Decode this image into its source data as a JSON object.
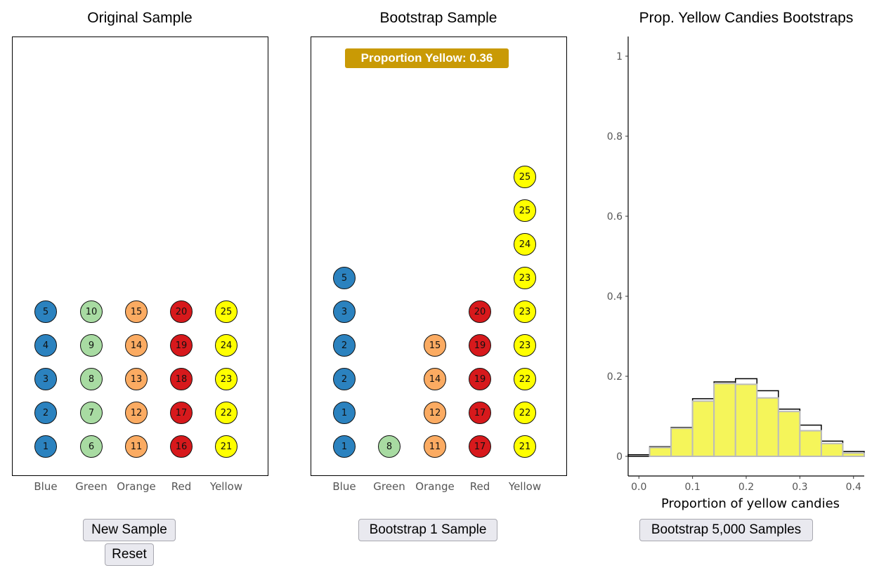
{
  "panels": {
    "original": {
      "title": "Original Sample",
      "categories": [
        "Blue",
        "Green",
        "Orange",
        "Red",
        "Yellow"
      ],
      "columns": [
        {
          "color": "#2b82bf",
          "ids": [
            "1",
            "2",
            "3",
            "4",
            "5"
          ]
        },
        {
          "color": "#a8dba2",
          "ids": [
            "6",
            "7",
            "8",
            "9",
            "10"
          ]
        },
        {
          "color": "#fbab62",
          "ids": [
            "11",
            "12",
            "13",
            "14",
            "15"
          ]
        },
        {
          "color": "#d7191c",
          "ids": [
            "16",
            "17",
            "18",
            "19",
            "20"
          ]
        },
        {
          "color": "#ffff00",
          "ids": [
            "21",
            "22",
            "23",
            "24",
            "25"
          ]
        }
      ]
    },
    "bootstrap": {
      "title": "Bootstrap Sample",
      "badge": "Proportion Yellow: 0.36",
      "badge_color": "#c99a05",
      "categories": [
        "Blue",
        "Green",
        "Orange",
        "Red",
        "Yellow"
      ],
      "columns": [
        {
          "color": "#2b82bf",
          "ids": [
            "1",
            "1",
            "2",
            "2",
            "3",
            "5"
          ]
        },
        {
          "color": "#a8dba2",
          "ids": [
            "8"
          ]
        },
        {
          "color": "#fbab62",
          "ids": [
            "11",
            "12",
            "14",
            "15"
          ]
        },
        {
          "color": "#d7191c",
          "ids": [
            "17",
            "17",
            "19",
            "19",
            "20"
          ]
        },
        {
          "color": "#ffff00",
          "ids": [
            "21",
            "22",
            "22",
            "23",
            "23",
            "23",
            "24",
            "25",
            "25"
          ]
        }
      ]
    },
    "histogram": {
      "title": "Prop. Yellow Candies Bootstraps"
    }
  },
  "chart_data": {
    "type": "bar",
    "title": "Prop. Yellow Candies Bootstraps",
    "xlabel": "Proportion of yellow candies",
    "ylabel": "",
    "xlim": [
      -0.02,
      0.42
    ],
    "ylim": [
      0,
      1.0
    ],
    "x_ticks": [
      0.0,
      0.1,
      0.2,
      0.3,
      0.4
    ],
    "x_tick_labels": [
      "0.0",
      "0.1",
      "0.2",
      "0.3",
      "0.4"
    ],
    "y_ticks": [
      0,
      0.2,
      0.4,
      0.6,
      0.8,
      1
    ],
    "y_tick_labels": [
      "0",
      "0.2",
      "0.4",
      "0.6",
      "0.8",
      "1"
    ],
    "bin_width": 0.04,
    "bins_left": [
      -0.02,
      0.02,
      0.06,
      0.1,
      0.14,
      0.18,
      0.22,
      0.26,
      0.3,
      0.34,
      0.38
    ],
    "series": [
      {
        "values": [
          0.004,
          0.024,
          0.072,
          0.144,
          0.186,
          0.194,
          0.164,
          0.118,
          0.078,
          0.038,
          0.012
        ],
        "color": "#ffffff",
        "stroke": "#000000"
      },
      {
        "values": [
          0.0,
          0.022,
          0.07,
          0.138,
          0.182,
          0.18,
          0.146,
          0.112,
          0.064,
          0.032,
          0.008
        ],
        "color": "#f5f55a",
        "stroke": "#bbbbbb"
      }
    ],
    "grid": false
  },
  "buttons": {
    "new_sample": "New Sample",
    "reset": "Reset",
    "bootstrap_one": "Bootstrap 1 Sample",
    "bootstrap_many": "Bootstrap 5,000 Samples"
  }
}
